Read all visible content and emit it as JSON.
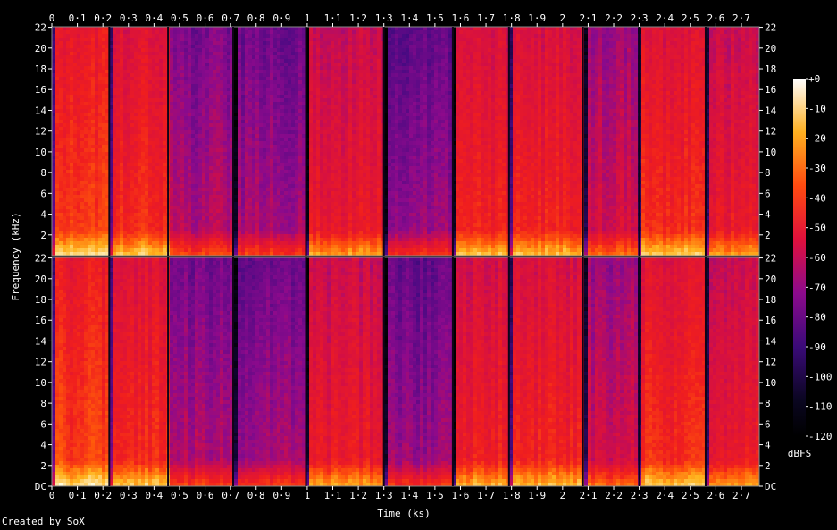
{
  "chart_data": {
    "type": "heatmap",
    "title": "",
    "xlabel": "Time (ks)",
    "ylabel": "Frequency (kHz)",
    "x_tick_labels": [
      "0",
      "0·1",
      "0·2",
      "0·3",
      "0·4",
      "0·5",
      "0·6",
      "0·7",
      "0·8",
      "0·9",
      "1",
      "1·1",
      "1·2",
      "1·3",
      "1·4",
      "1·5",
      "1·6",
      "1·7",
      "1·8",
      "1·9",
      "2",
      "2·1",
      "2·2",
      "2·3",
      "2·4",
      "2·5",
      "2·6",
      "2·7"
    ],
    "x_ticks": [
      0,
      0.1,
      0.2,
      0.3,
      0.4,
      0.5,
      0.6,
      0.7,
      0.8,
      0.9,
      1.0,
      1.1,
      1.2,
      1.3,
      1.4,
      1.5,
      1.6,
      1.7,
      1.8,
      1.9,
      2.0,
      2.1,
      2.2,
      2.3,
      2.4,
      2.5,
      2.6,
      2.7
    ],
    "xlim": [
      0,
      2.77
    ],
    "y_tick_labels": [
      "DC",
      "2",
      "4",
      "6",
      "8",
      "10",
      "12",
      "14",
      "16",
      "18",
      "20",
      "22"
    ],
    "y_ticks": [
      0,
      2,
      4,
      6,
      8,
      10,
      12,
      14,
      16,
      18,
      20,
      22
    ],
    "ylim": [
      0,
      22.05
    ],
    "channels": 2,
    "colorbar": {
      "label": "dBFS",
      "tick_labels": [
        "+0",
        "-10",
        "-20",
        "-30",
        "-40",
        "-50",
        "-60",
        "-70",
        "-80",
        "-90",
        "-100",
        "-110",
        "-120"
      ],
      "range": [
        -120,
        0
      ]
    },
    "segment_boundaries_ks": [
      0.225,
      0.455,
      0.71,
      0.995,
      1.3,
      1.57,
      1.79,
      2.08,
      2.3,
      2.56
    ],
    "segments": [
      {
        "start": 0.0,
        "end": 0.225,
        "level": 0.7
      },
      {
        "start": 0.225,
        "end": 0.455,
        "level": 0.66
      },
      {
        "start": 0.455,
        "end": 0.71,
        "level": 0.46
      },
      {
        "start": 0.71,
        "end": 0.995,
        "level": 0.44
      },
      {
        "start": 0.995,
        "end": 1.3,
        "level": 0.6
      },
      {
        "start": 1.3,
        "end": 1.57,
        "level": 0.42
      },
      {
        "start": 1.57,
        "end": 1.79,
        "level": 0.63
      },
      {
        "start": 1.79,
        "end": 2.08,
        "level": 0.64
      },
      {
        "start": 2.08,
        "end": 2.3,
        "level": 0.52
      },
      {
        "start": 2.3,
        "end": 2.56,
        "level": 0.66
      },
      {
        "start": 2.56,
        "end": 2.77,
        "level": 0.6
      }
    ],
    "grid": false
  },
  "credit": "Created by SoX"
}
